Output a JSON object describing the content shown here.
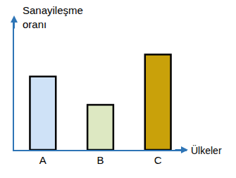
{
  "chart_data": {
    "type": "bar",
    "y_label": "Sanayileşme oranı",
    "x_label": "Ülkeler",
    "categories": [
      "A",
      "B",
      "C"
    ],
    "values": [
      57,
      35,
      74
    ],
    "colors": [
      "#cfe2f7",
      "#dde8c2",
      "#c9a10a"
    ],
    "ylim": [
      0,
      100
    ],
    "tick_labels": "x",
    "grid": false
  }
}
